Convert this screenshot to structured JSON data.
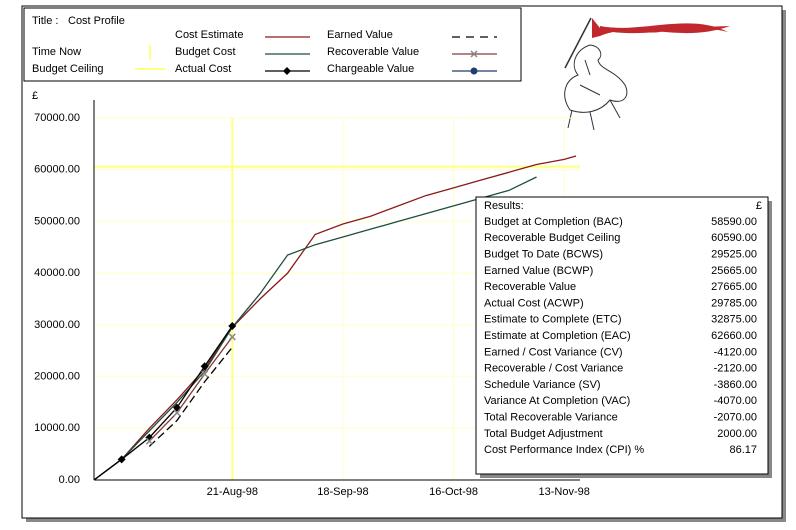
{
  "chart_data": {
    "type": "line",
    "title_label": "Title :",
    "title": "Cost Profile",
    "y_unit": "£",
    "x": [
      "1998-07-17",
      "1998-07-24",
      "1998-07-31",
      "1998-08-07",
      "1998-08-14",
      "1998-08-21",
      "1998-08-28",
      "1998-09-04",
      "1998-09-11",
      "1998-09-18",
      "1998-09-25",
      "1998-10-02",
      "1998-10-09",
      "1998-10-16",
      "1998-10-23",
      "1998-10-30",
      "1998-11-06",
      "1998-11-13",
      "1998-11-16"
    ],
    "xlim": [
      "1998-07-17",
      "1998-11-17"
    ],
    "xticks": [
      {
        "value": "1998-08-21",
        "label": "21-Aug-98"
      },
      {
        "value": "1998-09-18",
        "label": "18-Sep-98"
      },
      {
        "value": "1998-10-16",
        "label": "16-Oct-98"
      },
      {
        "value": "1998-11-13",
        "label": "13-Nov-98"
      }
    ],
    "ylim": [
      0,
      70000
    ],
    "yticks": [
      {
        "value": 0,
        "label": "0.00"
      },
      {
        "value": 10000,
        "label": "10000.00"
      },
      {
        "value": 20000,
        "label": "20000.00"
      },
      {
        "value": 30000,
        "label": "30000.00"
      },
      {
        "value": 40000,
        "label": "40000.00"
      },
      {
        "value": 50000,
        "label": "50000.00"
      },
      {
        "value": 60000,
        "label": "60000.00"
      },
      {
        "value": 70000,
        "label": "70000.00"
      }
    ],
    "grid": true,
    "grid_color": "#ffffc8",
    "time_now": {
      "name": "Time Now",
      "x": "1998-08-21",
      "color": "#ffff80"
    },
    "budget_ceiling": {
      "name": "Budget Ceiling",
      "value": 60590,
      "color": "#ffff80"
    },
    "series": [
      {
        "name": "Cost Estimate",
        "color": "#8b1a1a",
        "values": [
          0,
          4000,
          10000,
          15500,
          21500,
          29500,
          35000,
          40000,
          47500,
          49500,
          51000,
          53000,
          55000,
          56500,
          58000,
          59500,
          61000,
          62000,
          62660
        ]
      },
      {
        "name": "Budget Cost",
        "color": "#1f4e3d",
        "values": [
          0,
          4000,
          9500,
          15000,
          21000,
          29525,
          36000,
          43500,
          45500,
          47000,
          48500,
          50000,
          51500,
          53000,
          54500,
          56000,
          58590,
          null,
          null
        ]
      },
      {
        "name": "Actual Cost",
        "color": "#000000",
        "marker": "diamond",
        "values": [
          0,
          4000,
          8200,
          14000,
          22000,
          29785,
          null,
          null,
          null,
          null,
          null,
          null,
          null,
          null,
          null,
          null,
          null,
          null,
          null
        ]
      },
      {
        "name": "Earned Value",
        "color": "#000000",
        "dash": true,
        "values": [
          null,
          null,
          6500,
          11500,
          19000,
          25665,
          null,
          null,
          null,
          null,
          null,
          null,
          null,
          null,
          null,
          null,
          null,
          null,
          null
        ]
      },
      {
        "name": "Recoverable Value",
        "color": "#8b3a3a",
        "marker": "x",
        "values": [
          null,
          null,
          7500,
          13000,
          20500,
          27665,
          null,
          null,
          null,
          null,
          null,
          null,
          null,
          null,
          null,
          null,
          null,
          null,
          null
        ]
      },
      {
        "name": "Chargeable Value",
        "color": "#1f3f6e",
        "marker": "circle",
        "values": [
          null,
          null,
          null,
          null,
          null,
          null,
          null,
          null,
          null,
          null,
          null,
          null,
          null,
          null,
          null,
          null,
          null,
          null,
          null
        ]
      }
    ],
    "results": {
      "title": "Results:",
      "unit": "£",
      "rows": [
        {
          "label": "Budget at Completion (BAC)",
          "value": "58590.00"
        },
        {
          "label": "Recoverable Budget Ceiling",
          "value": "60590.00"
        },
        {
          "label": "Budget To Date (BCWS)",
          "value": "29525.00"
        },
        {
          "label": "Earned Value (BCWP)",
          "value": "25665.00"
        },
        {
          "label": "Recoverable Value",
          "value": "27665.00"
        },
        {
          "label": "Actual Cost (ACWP)",
          "value": "29785.00"
        },
        {
          "label": "Estimate to Complete (ETC)",
          "value": "32875.00"
        },
        {
          "label": "Estimate at Completion (EAC)",
          "value": "62660.00"
        },
        {
          "label": "Earned / Cost Variance (CV)",
          "value": "-4120.00"
        },
        {
          "label": "Recoverable / Cost Variance",
          "value": "-2120.00"
        },
        {
          "label": "Schedule Variance (SV)",
          "value": "-3860.00"
        },
        {
          "label": "Variance At Completion (VAC)",
          "value": "-4070.00"
        },
        {
          "label": "Total Recoverable Variance",
          "value": "-2070.00"
        },
        {
          "label": "Total Budget Adjustment",
          "value": "2000.00"
        },
        {
          "label": "Cost Performance Index (CPI) %",
          "value": "86.17"
        }
      ]
    }
  }
}
